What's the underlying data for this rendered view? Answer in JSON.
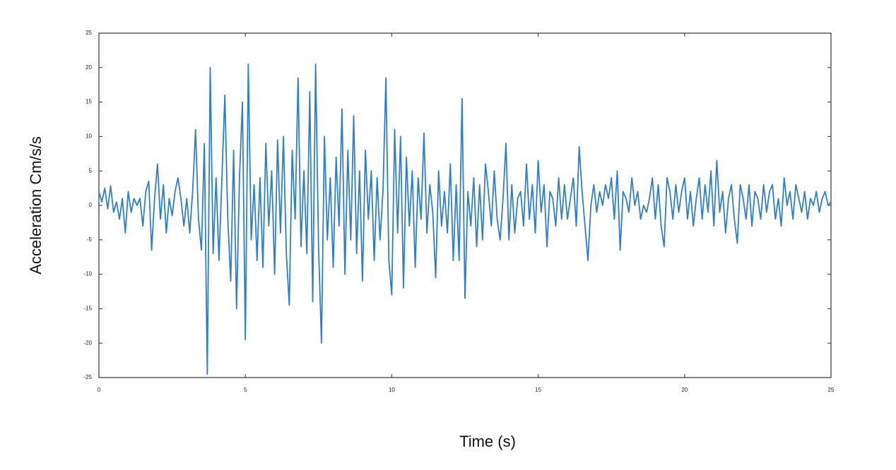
{
  "chart_data": {
    "type": "line",
    "xlabel": "Time (s)",
    "ylabel": "Acceleration Cm/s/s",
    "x": [
      0,
      0.1,
      0.2,
      0.3,
      0.4,
      0.5,
      0.6,
      0.7,
      0.8,
      0.9,
      1,
      1.1,
      1.2,
      1.3,
      1.4,
      1.5,
      1.6,
      1.7,
      1.8,
      1.9,
      2,
      2.1,
      2.2,
      2.3,
      2.4,
      2.5,
      2.6,
      2.7,
      2.8,
      2.9,
      3,
      3.1,
      3.2,
      3.3,
      3.4,
      3.5,
      3.6,
      3.7,
      3.8,
      3.9,
      4,
      4.1,
      4.2,
      4.3,
      4.4,
      4.5,
      4.6,
      4.7,
      4.8,
      4.9,
      5,
      5.1,
      5.2,
      5.3,
      5.4,
      5.5,
      5.6,
      5.7,
      5.8,
      5.9,
      6,
      6.1,
      6.2,
      6.3,
      6.4,
      6.5,
      6.6,
      6.7,
      6.8,
      6.9,
      7,
      7.1,
      7.2,
      7.3,
      7.4,
      7.5,
      7.6,
      7.7,
      7.8,
      7.9,
      8,
      8.1,
      8.2,
      8.3,
      8.4,
      8.5,
      8.6,
      8.7,
      8.8,
      8.9,
      9,
      9.1,
      9.2,
      9.3,
      9.4,
      9.5,
      9.6,
      9.7,
      9.8,
      9.9,
      10,
      10.1,
      10.2,
      10.3,
      10.4,
      10.5,
      10.6,
      10.7,
      10.8,
      10.9,
      11,
      11.1,
      11.2,
      11.3,
      11.4,
      11.5,
      11.6,
      11.7,
      11.8,
      11.9,
      12,
      12.1,
      12.2,
      12.3,
      12.4,
      12.5,
      12.6,
      12.7,
      12.8,
      12.9,
      13,
      13.1,
      13.2,
      13.3,
      13.4,
      13.5,
      13.6,
      13.7,
      13.8,
      13.9,
      14,
      14.1,
      14.2,
      14.3,
      14.4,
      14.5,
      14.6,
      14.7,
      14.8,
      14.9,
      15,
      15.1,
      15.2,
      15.3,
      15.4,
      15.5,
      15.6,
      15.7,
      15.8,
      15.9,
      16,
      16.1,
      16.2,
      16.3,
      16.4,
      16.5,
      16.6,
      16.7,
      16.8,
      16.9,
      17,
      17.1,
      17.2,
      17.3,
      17.4,
      17.5,
      17.6,
      17.7,
      17.8,
      17.9,
      18,
      18.1,
      18.2,
      18.3,
      18.4,
      18.5,
      18.6,
      18.7,
      18.8,
      18.9,
      19,
      19.1,
      19.2,
      19.3,
      19.4,
      19.5,
      19.6,
      19.7,
      19.8,
      19.9,
      20,
      20.1,
      20.2,
      20.3,
      20.4,
      20.5,
      20.6,
      20.7,
      20.8,
      20.9,
      21,
      21.1,
      21.2,
      21.3,
      21.4,
      21.5,
      21.6,
      21.7,
      21.8,
      21.9,
      22,
      22.1,
      22.2,
      22.3,
      22.4,
      22.5,
      22.6,
      22.7,
      22.8,
      22.9,
      23,
      23.1,
      23.2,
      23.3,
      23.4,
      23.5,
      23.6,
      23.7,
      23.8,
      23.9,
      24,
      24.1,
      24.2,
      24.3,
      24.4,
      24.5,
      24.6,
      24.7,
      24.8,
      24.9,
      25
    ],
    "series": [
      {
        "color": "#2f7fc8",
        "values": [
          2,
          0.5,
          2.5,
          -0.5,
          2.8,
          -1,
          0.5,
          -2,
          1,
          -4,
          2,
          -1,
          1,
          0,
          1,
          -3,
          2,
          3.5,
          -6.5,
          1,
          6,
          -2,
          3,
          -4,
          1,
          -1.5,
          2,
          4,
          1,
          -3,
          1,
          -4,
          2,
          11,
          -2,
          -6.5,
          9,
          -24.5,
          20,
          -7,
          4,
          -8,
          4,
          16,
          -2,
          -11,
          8,
          -15,
          4,
          15,
          -19.5,
          20.5,
          -5,
          3,
          -8,
          4,
          -9,
          9,
          -3,
          5,
          -10,
          9.5,
          -4,
          10,
          -7,
          -14.5,
          8,
          -2,
          18.5,
          -6,
          5,
          -7,
          16.5,
          -14,
          20.5,
          -6,
          -20,
          10,
          -5,
          4,
          -9,
          7,
          -3,
          14,
          -10,
          8,
          -5,
          13,
          -7,
          5,
          -11,
          8,
          -2,
          5,
          -8,
          4,
          -5,
          2,
          18.5,
          -8,
          -13,
          11,
          -4,
          10,
          -12,
          7,
          -3,
          5,
          -9,
          4,
          -2,
          10.5,
          -4,
          3,
          -1,
          -10.5,
          5,
          -3,
          2,
          -4,
          6,
          -8,
          3,
          -8,
          15.5,
          -13.5,
          2,
          -3,
          4,
          -6,
          3,
          -5,
          6,
          2,
          -3,
          5,
          -2,
          -5,
          1,
          9,
          -5,
          3,
          -4,
          1,
          2,
          -3,
          6,
          -2,
          3,
          -4,
          6.5,
          -1,
          3,
          -6,
          2,
          1,
          -3,
          4,
          -2,
          3,
          -2,
          1,
          4,
          -3,
          8.5,
          2,
          -3,
          -8,
          0,
          3,
          -1,
          2,
          0,
          3,
          1,
          4,
          -2,
          5,
          -6.5,
          2,
          1,
          -1,
          4,
          0,
          2,
          -2,
          0,
          -1,
          1,
          4,
          -2,
          3,
          -3,
          -6,
          4,
          2,
          -2,
          3,
          -1,
          2,
          4,
          -2,
          2,
          -3,
          1,
          4,
          -2,
          3,
          -1,
          5,
          -3,
          6.5,
          -1,
          2,
          -4,
          1,
          3,
          -2,
          -5.5,
          3,
          1,
          -2,
          3,
          -3,
          2,
          1,
          -2,
          3,
          -1,
          2,
          3,
          -2,
          1,
          -3,
          4,
          0,
          2,
          -2,
          3,
          1,
          -1,
          2,
          -2,
          1,
          0,
          2,
          -1,
          1,
          2,
          0,
          0.5
        ]
      }
    ],
    "xlim": [
      0,
      25
    ],
    "xticks": [
      0,
      5,
      10,
      15,
      20,
      25
    ],
    "ylim": [
      -25,
      25
    ],
    "yticks": [
      -25,
      -20,
      -15,
      -10,
      -5,
      0,
      5,
      10,
      15,
      20,
      25
    ],
    "grid": false
  }
}
